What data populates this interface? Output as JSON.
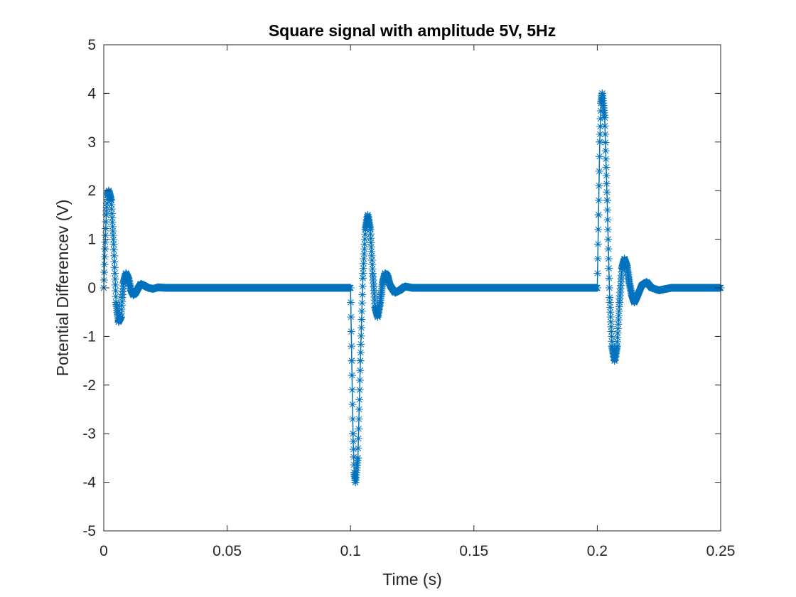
{
  "chart_data": {
    "type": "line",
    "marker": "asterisk",
    "title": "Square signal with amplitude 5V, 5Hz",
    "xlabel": "Time (s)",
    "ylabel": "Potential Differencev (V)",
    "xlim": [
      0,
      0.25
    ],
    "ylim": [
      -5,
      5
    ],
    "xticks": [
      0,
      0.05,
      0.1,
      0.15,
      0.2,
      0.25
    ],
    "xtick_labels": [
      "0",
      "0.05",
      "0.1",
      "0.15",
      "0.2",
      "0.25"
    ],
    "yticks": [
      -5,
      -4,
      -3,
      -2,
      -1,
      0,
      1,
      2,
      3,
      4,
      5
    ],
    "ytick_labels": [
      "-5",
      "-4",
      "-3",
      "-2",
      "-1",
      "0",
      "1",
      "2",
      "3",
      "4",
      "5"
    ],
    "grid": false,
    "series": [
      {
        "color": "#0072BD",
        "x": [
          0,
          0.0005,
          0.001,
          0.0015,
          0.002,
          0.003,
          0.004,
          0.005,
          0.006,
          0.007,
          0.0075,
          0.008,
          0.009,
          0.01,
          0.011,
          0.012,
          0.013,
          0.014,
          0.015,
          0.016,
          0.018,
          0.02,
          0.022,
          0.025,
          0.03,
          0.05,
          0.07,
          0.09,
          0.1,
          0.1005,
          0.101,
          0.1015,
          0.102,
          0.103,
          0.104,
          0.105,
          0.106,
          0.107,
          0.108,
          0.109,
          0.11,
          0.111,
          0.112,
          0.113,
          0.114,
          0.115,
          0.116,
          0.118,
          0.12,
          0.122,
          0.125,
          0.13,
          0.15,
          0.17,
          0.19,
          0.2,
          0.2005,
          0.201,
          0.2015,
          0.202,
          0.203,
          0.204,
          0.205,
          0.206,
          0.207,
          0.208,
          0.209,
          0.21,
          0.211,
          0.212,
          0.213,
          0.214,
          0.215,
          0.216,
          0.218,
          0.22,
          0.222,
          0.225,
          0.23,
          0.24,
          0.25
        ],
        "y": [
          0,
          0.8,
          1.5,
          1.9,
          2.0,
          1.8,
          0.9,
          -0.3,
          -0.7,
          -0.6,
          -0.2,
          0.1,
          0.3,
          0.2,
          -0.05,
          -0.15,
          -0.1,
          0,
          0.08,
          0.06,
          0,
          -0.02,
          0.01,
          0,
          0,
          0,
          0,
          0,
          0,
          -1.5,
          -3.0,
          -3.8,
          -4.0,
          -3.5,
          -1.5,
          0.2,
          1.2,
          1.5,
          1.2,
          0.3,
          -0.4,
          -0.6,
          -0.3,
          0.1,
          0.3,
          0.25,
          0.05,
          -0.1,
          -0.05,
          0.03,
          0,
          0,
          0,
          0,
          0,
          0,
          1.5,
          3.0,
          3.8,
          4.0,
          3.5,
          1.8,
          -0.2,
          -1.2,
          -1.5,
          -1.2,
          -0.3,
          0.4,
          0.6,
          0.45,
          0.1,
          -0.15,
          -0.3,
          -0.2,
          0.05,
          0.12,
          0,
          -0.05,
          0,
          0,
          0
        ]
      }
    ]
  }
}
